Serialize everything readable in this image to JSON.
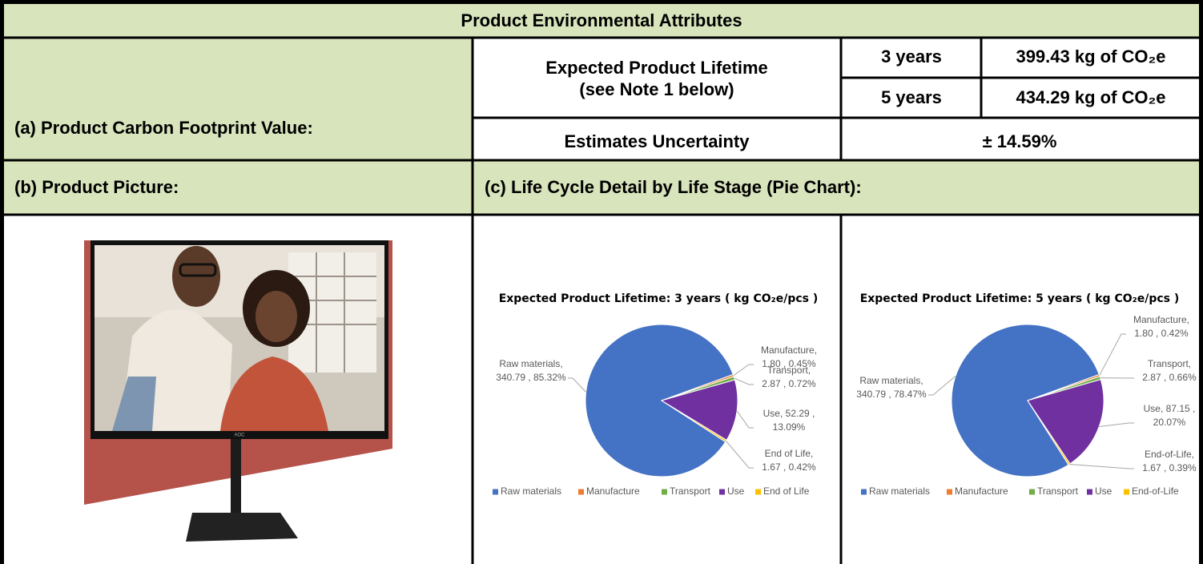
{
  "header": {
    "title": "Product Environmental Attributes"
  },
  "carbon_footprint": {
    "label": "(a) Product Carbon Footprint Value:",
    "lifetime_label": [
      "Expected Product Lifetime",
      "(see Note 1 below)"
    ],
    "rows": [
      {
        "period": "3 years",
        "value": "399.43 kg of CO₂e"
      },
      {
        "period": "5 years",
        "value": "434.29 kg of CO₂e"
      }
    ],
    "uncertainty_label": "Estimates Uncertainty",
    "uncertainty": "± 14.59%"
  },
  "picture": {
    "label": "(b) Product Picture:",
    "logo": "AOC"
  },
  "life_cycle": {
    "label": "(c) Life Cycle Detail by Life Stage (Pie Chart):"
  },
  "chart_data": [
    {
      "type": "pie",
      "title": "Expected Product Lifetime: 3 years ( kg CO₂e/pcs )",
      "categories": [
        "Raw materials",
        "Manufacture",
        "Transport",
        "Use",
        "End of Life"
      ],
      "values": [
        340.79,
        1.8,
        2.87,
        52.29,
        1.67
      ],
      "value_labels": [
        [
          "Raw materials,",
          "340.79 , 85.32%"
        ],
        [
          "Manufacture,",
          "1.80 , 0.45%"
        ],
        [
          "Transport,",
          "2.87 , 0.72%"
        ],
        [
          "Use, 52.29 ,",
          "13.09%"
        ],
        [
          "End of Life,",
          "1.67 , 0.42%"
        ]
      ],
      "colors": [
        "#4472c4",
        "#ed7d31",
        "#70ad47",
        "#7030a0",
        "#ffc000"
      ]
    },
    {
      "type": "pie",
      "title": "Expected Product Lifetime: 5 years ( kg CO₂e/pcs )",
      "categories": [
        "Raw materials",
        "Manufacture",
        "Transport",
        "Use",
        "End-of-Life"
      ],
      "values": [
        340.79,
        1.8,
        2.87,
        87.15,
        1.67
      ],
      "value_labels": [
        [
          "Raw materials,",
          "340.79 , 78.47%"
        ],
        [
          "Manufacture,",
          "1.80 , 0.42%"
        ],
        [
          "Transport,",
          "2.87 , 0.66%"
        ],
        [
          "Use, 87.15 ,",
          "20.07%"
        ],
        [
          "End-of-Life,",
          "1.67 , 0.39%"
        ]
      ],
      "colors": [
        "#4472c4",
        "#ed7d31",
        "#70ad47",
        "#7030a0",
        "#ffc000"
      ]
    }
  ]
}
